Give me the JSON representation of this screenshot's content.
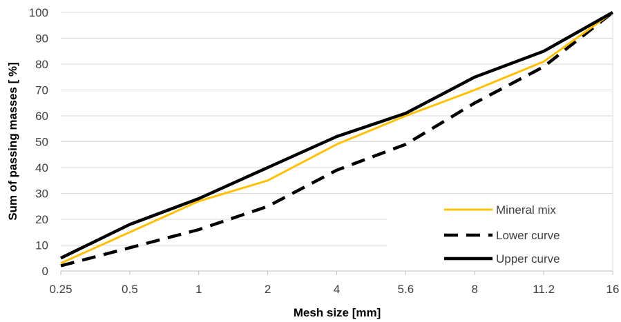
{
  "chart_data": {
    "type": "line",
    "x": [
      "0.25",
      "0.5",
      "1",
      "2",
      "4",
      "5.6",
      "8",
      "11.2",
      "16"
    ],
    "series": [
      {
        "name": "Mineral mix",
        "values": [
          3,
          15,
          27,
          35,
          49,
          60,
          70,
          81,
          100
        ],
        "color": "#ffc000",
        "dash": "solid"
      },
      {
        "name": "Lower curve",
        "values": [
          2,
          9,
          16,
          25,
          39,
          49,
          65,
          79,
          100
        ],
        "color": "#000000",
        "dash": "dashed"
      },
      {
        "name": "Upper curve",
        "values": [
          5,
          18,
          28,
          40,
          52,
          61,
          75,
          85,
          100
        ],
        "color": "#000000",
        "dash": "solid"
      }
    ],
    "xlabel": "Mesh size [mm]",
    "ylabel": "Sum of passing masses [ %]",
    "ylim": [
      0,
      100
    ],
    "yticks": [
      0,
      10,
      20,
      30,
      40,
      50,
      60,
      70,
      80,
      90,
      100
    ],
    "grid": true,
    "legend": "bottom-right"
  }
}
